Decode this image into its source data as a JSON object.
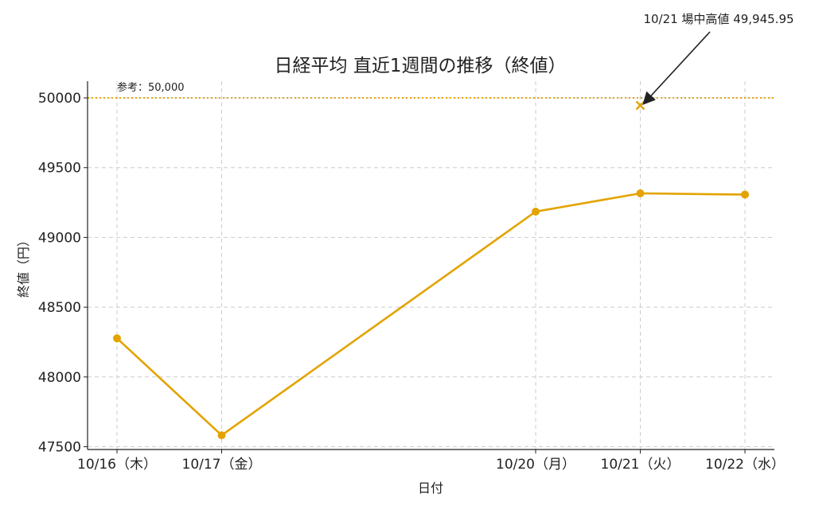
{
  "chart_data": {
    "type": "line",
    "title": "日経平均 直近1週間の推移（終値）",
    "xlabel": "日付",
    "ylabel": "終値（円）",
    "categories": [
      "10/16（木）",
      "10/17（金）",
      "10/20（月）",
      "10/21（火）",
      "10/22（水）"
    ],
    "x_dates": [
      "2025-10-16",
      "2025-10-17",
      "2025-10-20",
      "2025-10-21",
      "2025-10-22"
    ],
    "series": [
      {
        "values": [
          48277,
          47582,
          49185,
          49316,
          49307
        ]
      }
    ],
    "yticks": [
      47500,
      48000,
      48500,
      49000,
      49500,
      50000
    ],
    "ytick_labels": [
      "47500",
      "48000",
      "48500",
      "49000",
      "49500",
      "50000"
    ],
    "ylim": [
      47480,
      50120
    ],
    "reference_line": {
      "value": 50000,
      "label": "参考：50,000",
      "style": "dotted"
    },
    "marker_point": {
      "date": "2025-10-21",
      "value": 49945.95,
      "marker": "x"
    },
    "annotation": {
      "text": "10/21 場中高値 49,945.95",
      "points_to": "2025-10-21"
    },
    "grid": true,
    "colors": {
      "line": "#E3A300",
      "reference": "#E3A300",
      "grid": "#cccccc",
      "axis": "#222222"
    }
  }
}
